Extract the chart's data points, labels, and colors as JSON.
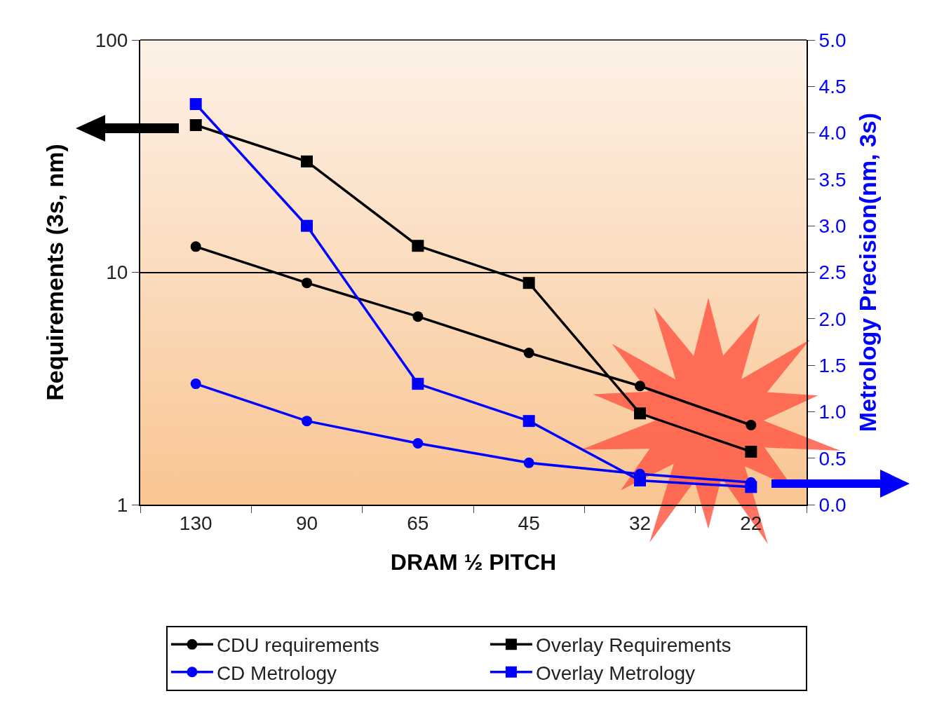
{
  "chart_data": {
    "type": "line",
    "xlabel": "DRAM ½ PITCH",
    "ylabel": "Requirements (3s, nm)",
    "y2label": "Metrology Precision(nm, 3s)",
    "categories": [
      "130",
      "90",
      "65",
      "45",
      "32",
      "22"
    ],
    "series": [
      {
        "name": "CDU requirements",
        "color": "#000000",
        "marker": "circle",
        "values": [
          12.9,
          9.0,
          6.45,
          4.5,
          3.24,
          2.2
        ]
      },
      {
        "name": "Overlay Requirements",
        "color": "#000000",
        "marker": "square",
        "values": [
          43,
          30,
          13,
          9,
          2.47,
          1.69
        ]
      },
      {
        "name": "CD Metrology",
        "color": "#0000ff",
        "marker": "circle",
        "axis": "y2",
        "values": [
          1.3,
          0.9,
          0.66,
          0.45,
          0.33,
          0.24
        ]
      },
      {
        "name": "Overlay Metrology",
        "color": "#0000ff",
        "marker": "square",
        "axis": "y2",
        "values": [
          4.31,
          3.0,
          1.3,
          0.9,
          0.26,
          0.19
        ]
      }
    ],
    "log": "y",
    "ylim": [
      1,
      100
    ],
    "yticks": [
      1,
      10,
      100
    ],
    "y2lim": [
      0,
      5
    ],
    "y2ticks": [
      {
        "value": 0,
        "label": "0.0"
      },
      {
        "value": 0.5,
        "label": "0.5"
      },
      {
        "value": 1,
        "label": "1.0"
      },
      {
        "value": 1.5,
        "label": "1.5"
      },
      {
        "value": 2,
        "label": "2.0"
      },
      {
        "value": 2.5,
        "label": "2.5"
      },
      {
        "value": 3,
        "label": "3.0"
      },
      {
        "value": 3.5,
        "label": "3.5"
      },
      {
        "value": 4,
        "label": "4.0"
      },
      {
        "value": 4.5,
        "label": "4.5"
      },
      {
        "value": 5,
        "label": "5.0"
      }
    ],
    "grid": "y",
    "legend": "bottom",
    "line_style": "solid"
  }
}
